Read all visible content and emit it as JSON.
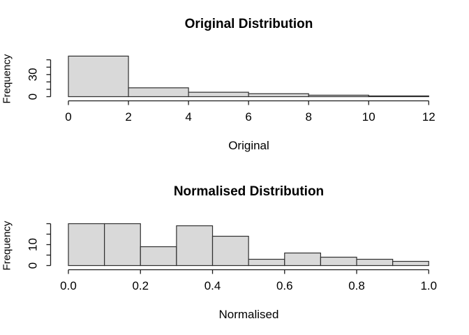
{
  "page": {
    "background": "#ffffff",
    "text_color": "#000000"
  },
  "chart_data": [
    {
      "type": "bar",
      "subtype": "histogram",
      "title": "Original Distribution",
      "xlabel": "Original",
      "ylabel": "Frequency",
      "bin_edges": [
        0,
        2,
        4,
        6,
        8,
        10,
        12
      ],
      "counts": [
        55,
        12,
        6,
        4,
        2,
        1
      ],
      "x_ticks": [
        0,
        2,
        4,
        6,
        8,
        10,
        12
      ],
      "x_tick_labels": [
        "0",
        "2",
        "4",
        "6",
        "8",
        "10",
        "12"
      ],
      "y_ticks": [
        0,
        10,
        20,
        30,
        40,
        50
      ],
      "y_tick_labels": [
        "0",
        "",
        "",
        "30",
        "",
        ""
      ],
      "xlim": [
        0,
        12
      ],
      "ylim": [
        0,
        55
      ],
      "grid": false,
      "legend": false,
      "bar_fill": "#d9d9d9",
      "bar_stroke": "#2f2f2f",
      "axis_color": "#1c1c1c"
    },
    {
      "type": "bar",
      "subtype": "histogram",
      "title": "Normalised Distribution",
      "xlabel": "Normalised",
      "ylabel": "Frequency",
      "bin_edges": [
        0,
        0.1,
        0.2,
        0.3,
        0.4,
        0.5,
        0.6,
        0.7,
        0.8,
        0.9,
        1.0
      ],
      "counts": [
        20,
        20,
        9,
        19,
        14,
        3,
        6,
        4,
        3,
        2
      ],
      "x_ticks": [
        0,
        0.2,
        0.4,
        0.6,
        0.8,
        1.0
      ],
      "x_tick_labels": [
        "0.0",
        "0.2",
        "0.4",
        "0.6",
        "0.8",
        "1.0"
      ],
      "y_ticks": [
        0,
        5,
        10,
        15,
        20
      ],
      "y_tick_labels": [
        "0",
        "",
        "10",
        "",
        ""
      ],
      "xlim": [
        0,
        1
      ],
      "ylim": [
        0,
        20
      ],
      "grid": false,
      "legend": false,
      "bar_fill": "#d9d9d9",
      "bar_stroke": "#2f2f2f",
      "axis_color": "#1c1c1c"
    }
  ]
}
